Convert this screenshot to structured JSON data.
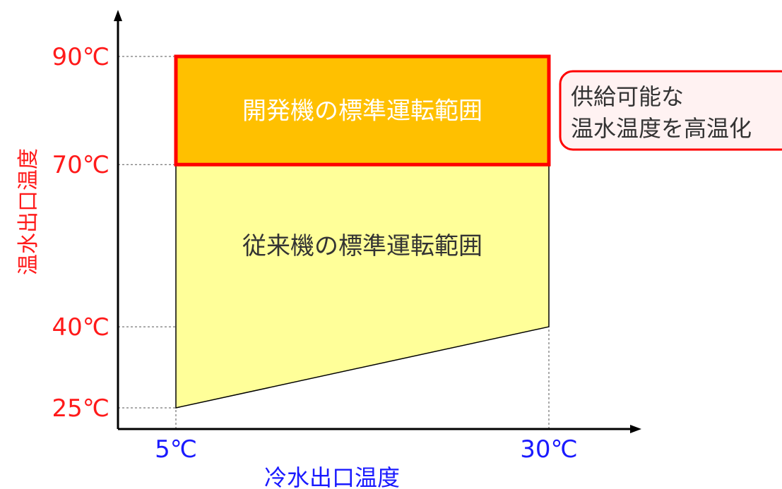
{
  "chart_data": {
    "type": "area",
    "xlabel": "冷水出口温度",
    "ylabel": "温水出口温度",
    "x_ticks": [
      {
        "value": 5,
        "label": "5℃"
      },
      {
        "value": 30,
        "label": "30℃"
      }
    ],
    "y_ticks": [
      {
        "value": 25,
        "label": "25℃"
      },
      {
        "value": 40,
        "label": "40℃"
      },
      {
        "value": 70,
        "label": "70℃"
      },
      {
        "value": 90,
        "label": "90℃"
      }
    ],
    "regions": [
      {
        "label": "従来機の標準運転範囲",
        "points": [
          [
            5,
            25
          ],
          [
            30,
            40
          ],
          [
            30,
            70
          ],
          [
            5,
            70
          ]
        ]
      },
      {
        "label": "開発機の標準運転範囲",
        "points": [
          [
            5,
            70
          ],
          [
            30,
            70
          ],
          [
            30,
            90
          ],
          [
            5,
            90
          ]
        ]
      }
    ],
    "callout": [
      "供給可能な",
      "温水温度を高温化"
    ]
  },
  "colors": {
    "axis_tick_y": "#ff1a1a",
    "axis_tick_x": "#1a1aff",
    "existing_region_fill": "#ffff99",
    "new_region_fill": "#ffc000",
    "new_region_border": "#ff0000",
    "callout_border": "#ff0000",
    "callout_fill": "#fff2f2",
    "text": "#333333"
  }
}
